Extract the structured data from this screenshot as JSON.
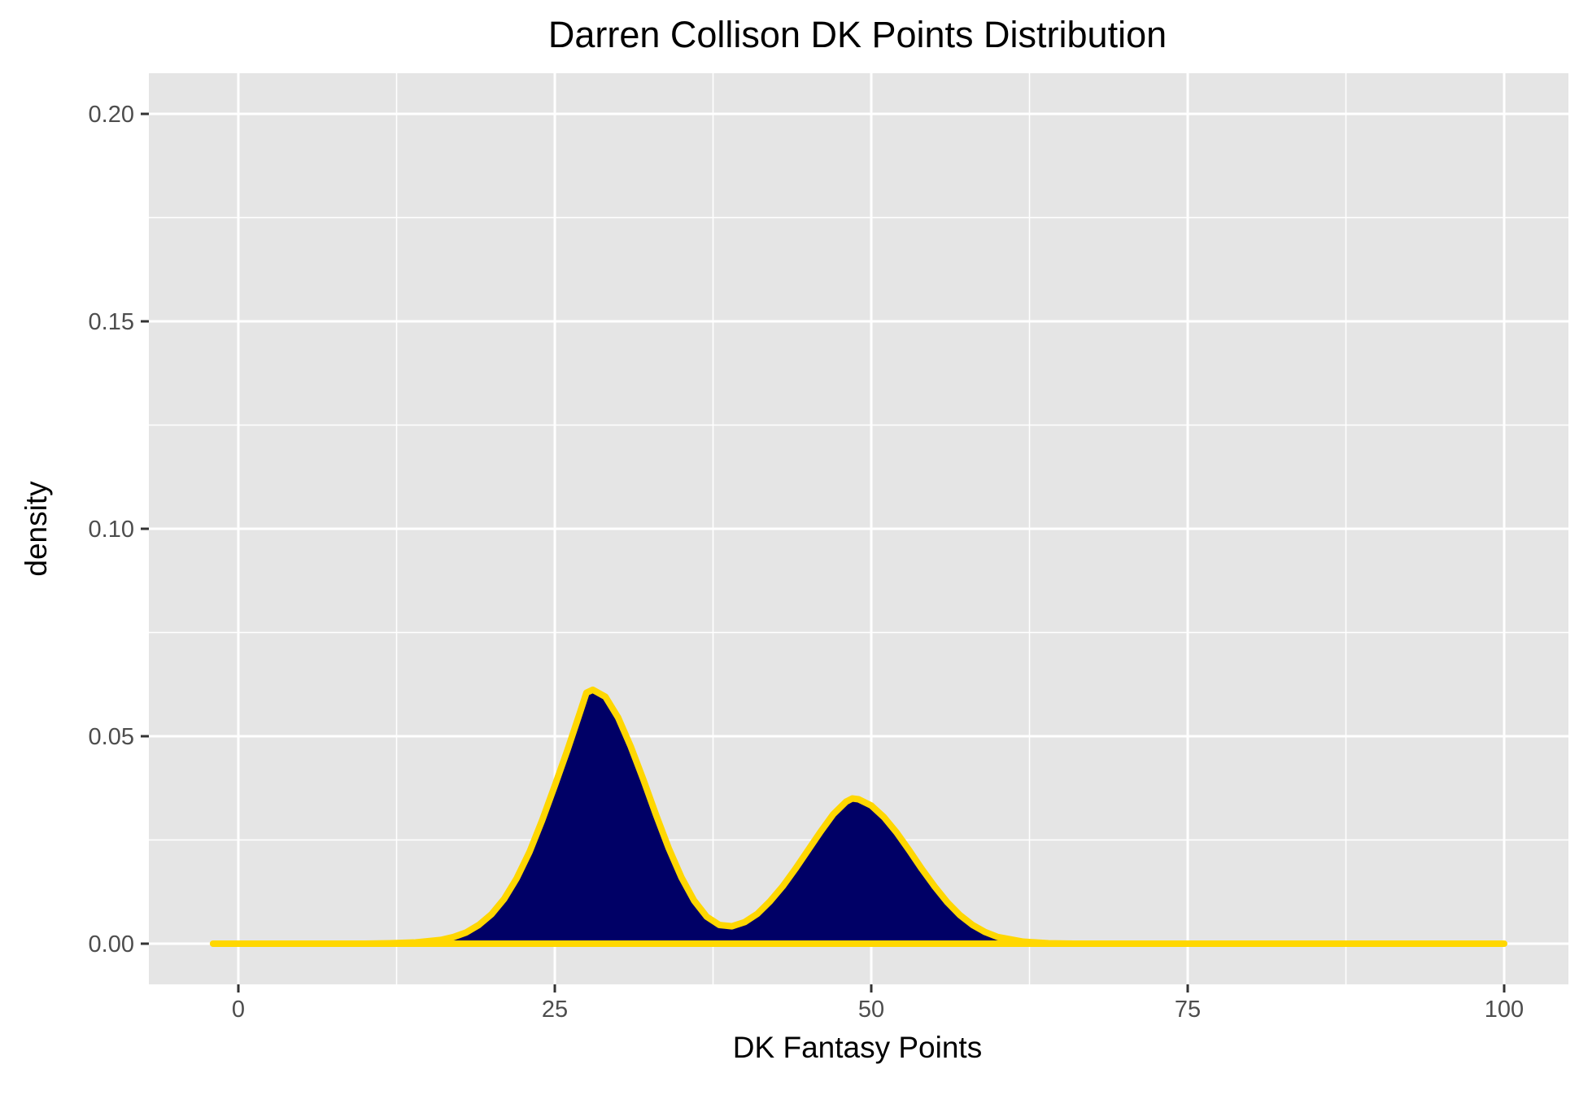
{
  "chart_data": {
    "type": "area",
    "title": "Darren Collison DK Points Distribution",
    "xlabel": "DK Fantasy Points",
    "ylabel": "density",
    "xlim": [
      -2,
      100
    ],
    "ylim": [
      0,
      0.2
    ],
    "x_ticks": [
      0,
      25,
      50,
      75,
      100
    ],
    "x_tick_labels": [
      "0",
      "25",
      "50",
      "75",
      "100"
    ],
    "y_ticks": [
      0,
      0.05,
      0.1,
      0.15,
      0.2
    ],
    "y_tick_labels": [
      "0.00",
      "0.05",
      "0.10",
      "0.15",
      "0.20"
    ],
    "grid": true,
    "legend": "none",
    "colors": {
      "panel": "#e5e5e5",
      "grid": "#ffffff",
      "fill": "#000066",
      "line": "#ffd700",
      "text": "#000000",
      "tick_text": "#4d4d4d",
      "tick_mark": "#333333"
    },
    "series": [
      {
        "x": [
          -2,
          0,
          5,
          10,
          12,
          14,
          16,
          17,
          18,
          19,
          20,
          21,
          22,
          23,
          24,
          25,
          26,
          27,
          27.5,
          28,
          29,
          30,
          31,
          32,
          33,
          34,
          35,
          36,
          37,
          38,
          39,
          40,
          41,
          42,
          43,
          44,
          45,
          46,
          47,
          48,
          48.5,
          49,
          50,
          51,
          52,
          53,
          54,
          55,
          56,
          57,
          58,
          59,
          60,
          62,
          64,
          66,
          70,
          80,
          90,
          100
        ],
        "y": [
          0,
          0,
          0,
          0,
          0.0001,
          0.0003,
          0.0009,
          0.0016,
          0.0027,
          0.0045,
          0.0071,
          0.0108,
          0.0158,
          0.0221,
          0.0297,
          0.0381,
          0.0467,
          0.0558,
          0.0605,
          0.0612,
          0.0595,
          0.0545,
          0.0475,
          0.0395,
          0.031,
          0.023,
          0.016,
          0.0104,
          0.0065,
          0.0045,
          0.0042,
          0.0052,
          0.0072,
          0.0102,
          0.0138,
          0.018,
          0.0225,
          0.027,
          0.0312,
          0.0342,
          0.035,
          0.0348,
          0.0333,
          0.0305,
          0.0268,
          0.0225,
          0.018,
          0.0138,
          0.01,
          0.0069,
          0.0045,
          0.0028,
          0.0016,
          0.0005,
          0.0001,
          0,
          0,
          0,
          0,
          0
        ]
      }
    ]
  }
}
